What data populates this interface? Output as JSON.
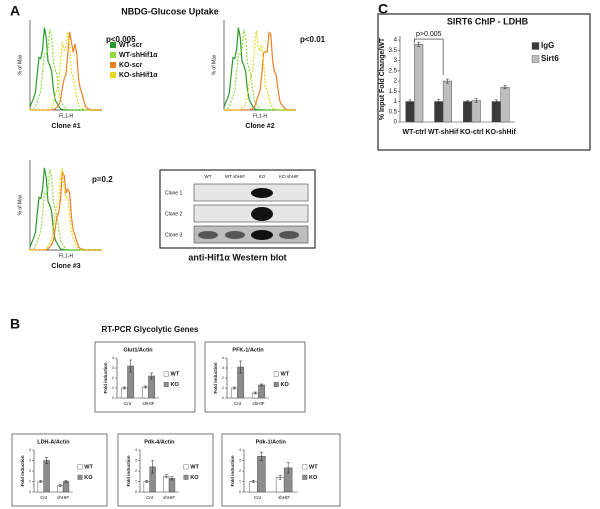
{
  "panel_labels": [
    "A",
    "B",
    "C"
  ],
  "panel_a": {
    "title": "NBDG-Glucose Uptake",
    "y_label": "% of Max",
    "x_label": "FL1-H",
    "clones": [
      {
        "name": "Clone #1",
        "p_value": "p<0.005"
      },
      {
        "name": "Clone #2",
        "p_value": "p<0.01"
      },
      {
        "name": "Clone #3",
        "p_value": "p=0.2"
      }
    ],
    "legend": [
      {
        "name": "WT-scr",
        "color": "#2a9a2a"
      },
      {
        "name": "WT-shHif1α",
        "color": "#8fdc3c"
      },
      {
        "name": "KO-scr",
        "color": "#f07f20"
      },
      {
        "name": "KO-shHif1α",
        "color": "#e3d822"
      }
    ],
    "blot": {
      "columns": [
        "WT",
        "WT shHIF",
        "KO",
        "KO shHIF"
      ],
      "rows": [
        "Clone 1",
        "Clone 2",
        "Clone 3"
      ],
      "caption": "anti-Hif1α Western blot"
    }
  },
  "panel_b": {
    "title": "RT-PCR Glycolytic Genes"
  },
  "chart_data": [
    {
      "type": "bar",
      "title": "SIRT6 ChIP - LDHB",
      "y_label": "% Input Fold Change/WT",
      "categories": [
        "WT-ctrl",
        "WT-shHif",
        "KO-ctrl",
        "KO-shHif"
      ],
      "series": [
        {
          "name": "IgG",
          "color": "#3a3a3a",
          "values": [
            1,
            1,
            1,
            1
          ],
          "errors": [
            0.08,
            0.1,
            0.04,
            0.08
          ]
        },
        {
          "name": "Sirt6",
          "color": "#bdbdbd",
          "values": [
            3.8,
            2.0,
            1.05,
            1.7
          ],
          "errors": [
            0.1,
            0.1,
            0.1,
            0.08
          ]
        }
      ],
      "annotation": "p>0.005",
      "ylim": [
        0,
        4.2
      ],
      "yticks": [
        0,
        0.5,
        1,
        1.5,
        2,
        2.5,
        3,
        3.5,
        4
      ]
    },
    {
      "type": "bar",
      "title": "Glut1/Actin",
      "y_label": "Fold induction",
      "categories": [
        "Cnt",
        "shHIF"
      ],
      "series": [
        {
          "name": "WT",
          "color": "#ffffff",
          "values": [
            1,
            1.1
          ],
          "errors": [
            0.1,
            0.1
          ]
        },
        {
          "name": "KO",
          "color": "#8c8c8c",
          "values": [
            3.2,
            2.2
          ],
          "errors": [
            0.6,
            0.3
          ]
        }
      ],
      "ylim": [
        0,
        4
      ],
      "yticks": [
        0,
        1,
        2,
        3,
        4
      ]
    },
    {
      "type": "bar",
      "title": "PFK-1/Actin",
      "y_label": "Fold induction",
      "categories": [
        "Cnt",
        "shHIF"
      ],
      "series": [
        {
          "name": "WT",
          "color": "#ffffff",
          "values": [
            1,
            0.5
          ],
          "errors": [
            0.1,
            0.1
          ]
        },
        {
          "name": "KO",
          "color": "#8c8c8c",
          "values": [
            3.1,
            1.3
          ],
          "errors": [
            0.6,
            0.1
          ]
        }
      ],
      "ylim": [
        0,
        4
      ],
      "yticks": [
        0,
        1,
        2,
        3,
        4
      ]
    },
    {
      "type": "bar",
      "title": "LDH-A/Actin",
      "y_label": "Fold induction",
      "categories": [
        "Cnt",
        "shHIF"
      ],
      "series": [
        {
          "name": "WT",
          "color": "#ffffff",
          "values": [
            1,
            0.6
          ],
          "errors": [
            0.1,
            0.1
          ]
        },
        {
          "name": "KO",
          "color": "#8c8c8c",
          "values": [
            3.0,
            1.0
          ],
          "errors": [
            0.3,
            0.1
          ]
        }
      ],
      "ylim": [
        0,
        4
      ],
      "yticks": [
        0,
        1,
        2,
        3,
        4
      ]
    },
    {
      "type": "bar",
      "title": "Pdk-4/Actin",
      "y_label": "Fold induction",
      "categories": [
        "Cnt",
        "shHIF"
      ],
      "series": [
        {
          "name": "WT",
          "color": "#ffffff",
          "values": [
            1,
            1.5
          ],
          "errors": [
            0.1,
            0.15
          ]
        },
        {
          "name": "KO",
          "color": "#8c8c8c",
          "values": [
            2.4,
            1.3
          ],
          "errors": [
            0.6,
            0.15
          ]
        }
      ],
      "ylim": [
        0,
        4
      ],
      "yticks": [
        0,
        1,
        2,
        3,
        4
      ]
    },
    {
      "type": "bar",
      "title": "Pdk-1/Actin",
      "y_label": "Fold induction",
      "categories": [
        "Cnt",
        "shHIF"
      ],
      "series": [
        {
          "name": "WT",
          "color": "#ffffff",
          "values": [
            1,
            1.4
          ],
          "errors": [
            0.1,
            0.2
          ]
        },
        {
          "name": "KO",
          "color": "#8c8c8c",
          "values": [
            3.4,
            2.3
          ],
          "errors": [
            0.4,
            0.5
          ]
        }
      ],
      "ylim": [
        0,
        4
      ],
      "yticks": [
        0,
        1,
        2,
        3,
        4
      ]
    }
  ]
}
